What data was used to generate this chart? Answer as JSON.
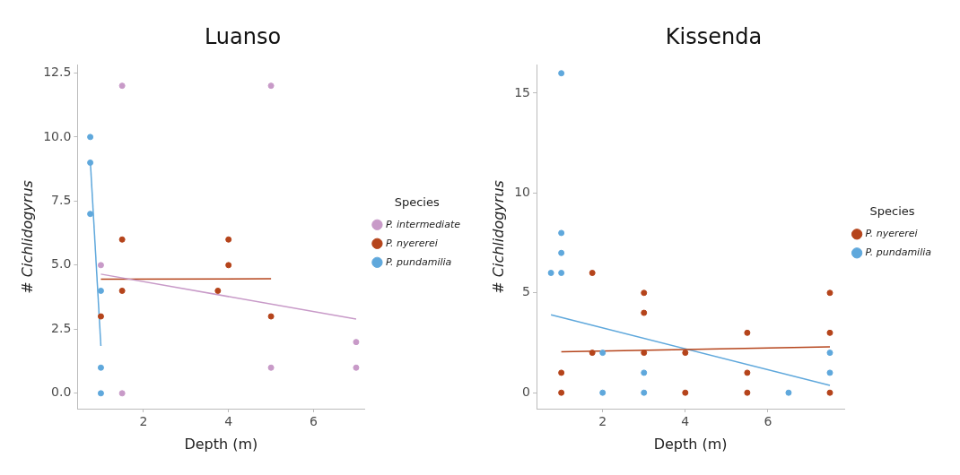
{
  "chart_data": [
    {
      "type": "scatter",
      "title": "Luanso",
      "xlabel": "Depth (m)",
      "ylabel": "# Cichlidogyrus",
      "legend_title": "Species",
      "legend": "right",
      "grid": false,
      "marker": "circle",
      "xlim": [
        0.45,
        7.2
      ],
      "xticks": [
        2,
        4,
        6
      ],
      "ylim": [
        -0.6,
        12.8
      ],
      "yticks": [
        {
          "value": 0,
          "label": "0.0"
        },
        {
          "value": 2.5,
          "label": "2.5"
        },
        {
          "value": 5,
          "label": "5.0"
        },
        {
          "value": 7.5,
          "label": "7.5"
        },
        {
          "value": 10,
          "label": "10.0"
        },
        {
          "value": 12.5,
          "label": "12.5"
        }
      ],
      "series": [
        {
          "name": "P. intermediate",
          "color": "#c89ac8",
          "x": [
            1,
            1.5,
            1.5,
            5,
            5,
            7,
            7
          ],
          "values": [
            5,
            12,
            0,
            12,
            1,
            2,
            1
          ]
        },
        {
          "name": "P. nyererei",
          "color": "#b5441b",
          "x": [
            1,
            1.5,
            1.5,
            3.75,
            4,
            4,
            5
          ],
          "values": [
            3,
            6,
            4,
            4,
            6,
            5,
            3
          ]
        },
        {
          "name": "P. pundamilia",
          "color": "#5fa8dc",
          "x": [
            0.75,
            0.75,
            0.75,
            1,
            1,
            1
          ],
          "values": [
            10,
            9,
            7,
            4,
            1,
            0
          ]
        },
        {
          "type": "line",
          "marker": "none",
          "color": "#c89ac8",
          "x": [
            1,
            7
          ],
          "values": [
            4.65,
            2.9
          ]
        },
        {
          "type": "line",
          "marker": "none",
          "color": "#b5441b",
          "x": [
            1,
            5
          ],
          "values": [
            4.45,
            4.47
          ]
        },
        {
          "type": "line",
          "marker": "none",
          "color": "#5fa8dc",
          "x": [
            0.75,
            1
          ],
          "values": [
            9.1,
            1.85
          ]
        }
      ]
    },
    {
      "type": "scatter",
      "title": "Kissenda",
      "xlabel": "Depth (m)",
      "ylabel": "# Cichlidogyrus",
      "legend_title": "Species",
      "legend": "right",
      "grid": false,
      "marker": "circle",
      "xlim": [
        0.4,
        7.85
      ],
      "xticks": [
        2,
        4,
        6
      ],
      "ylim": [
        -0.8,
        16.4
      ],
      "yticks": [
        0,
        5,
        10,
        15
      ],
      "series": [
        {
          "name": "P. nyererei",
          "color": "#b5441b",
          "x": [
            1,
            1,
            1.75,
            1.75,
            3,
            3,
            3,
            4,
            4,
            5.5,
            5.5,
            5.5,
            7.5,
            7.5,
            7.5
          ],
          "values": [
            1,
            0,
            6,
            2,
            5,
            4,
            2,
            2,
            0,
            3,
            1,
            0,
            5,
            3,
            0
          ]
        },
        {
          "name": "P. pundamilia",
          "color": "#5fa8dc",
          "x": [
            0.75,
            1,
            1,
            1,
            1,
            2,
            2,
            3,
            3,
            6.5,
            7.5,
            7.5
          ],
          "values": [
            6,
            16,
            8,
            7,
            6,
            2,
            0,
            1,
            0,
            0,
            2,
            1
          ]
        },
        {
          "type": "line",
          "marker": "none",
          "color": "#b5441b",
          "x": [
            1,
            7.5
          ],
          "values": [
            2.05,
            2.3
          ]
        },
        {
          "type": "line",
          "marker": "none",
          "color": "#5fa8dc",
          "x": [
            0.75,
            7.5
          ],
          "values": [
            3.9,
            0.37
          ]
        }
      ]
    }
  ]
}
